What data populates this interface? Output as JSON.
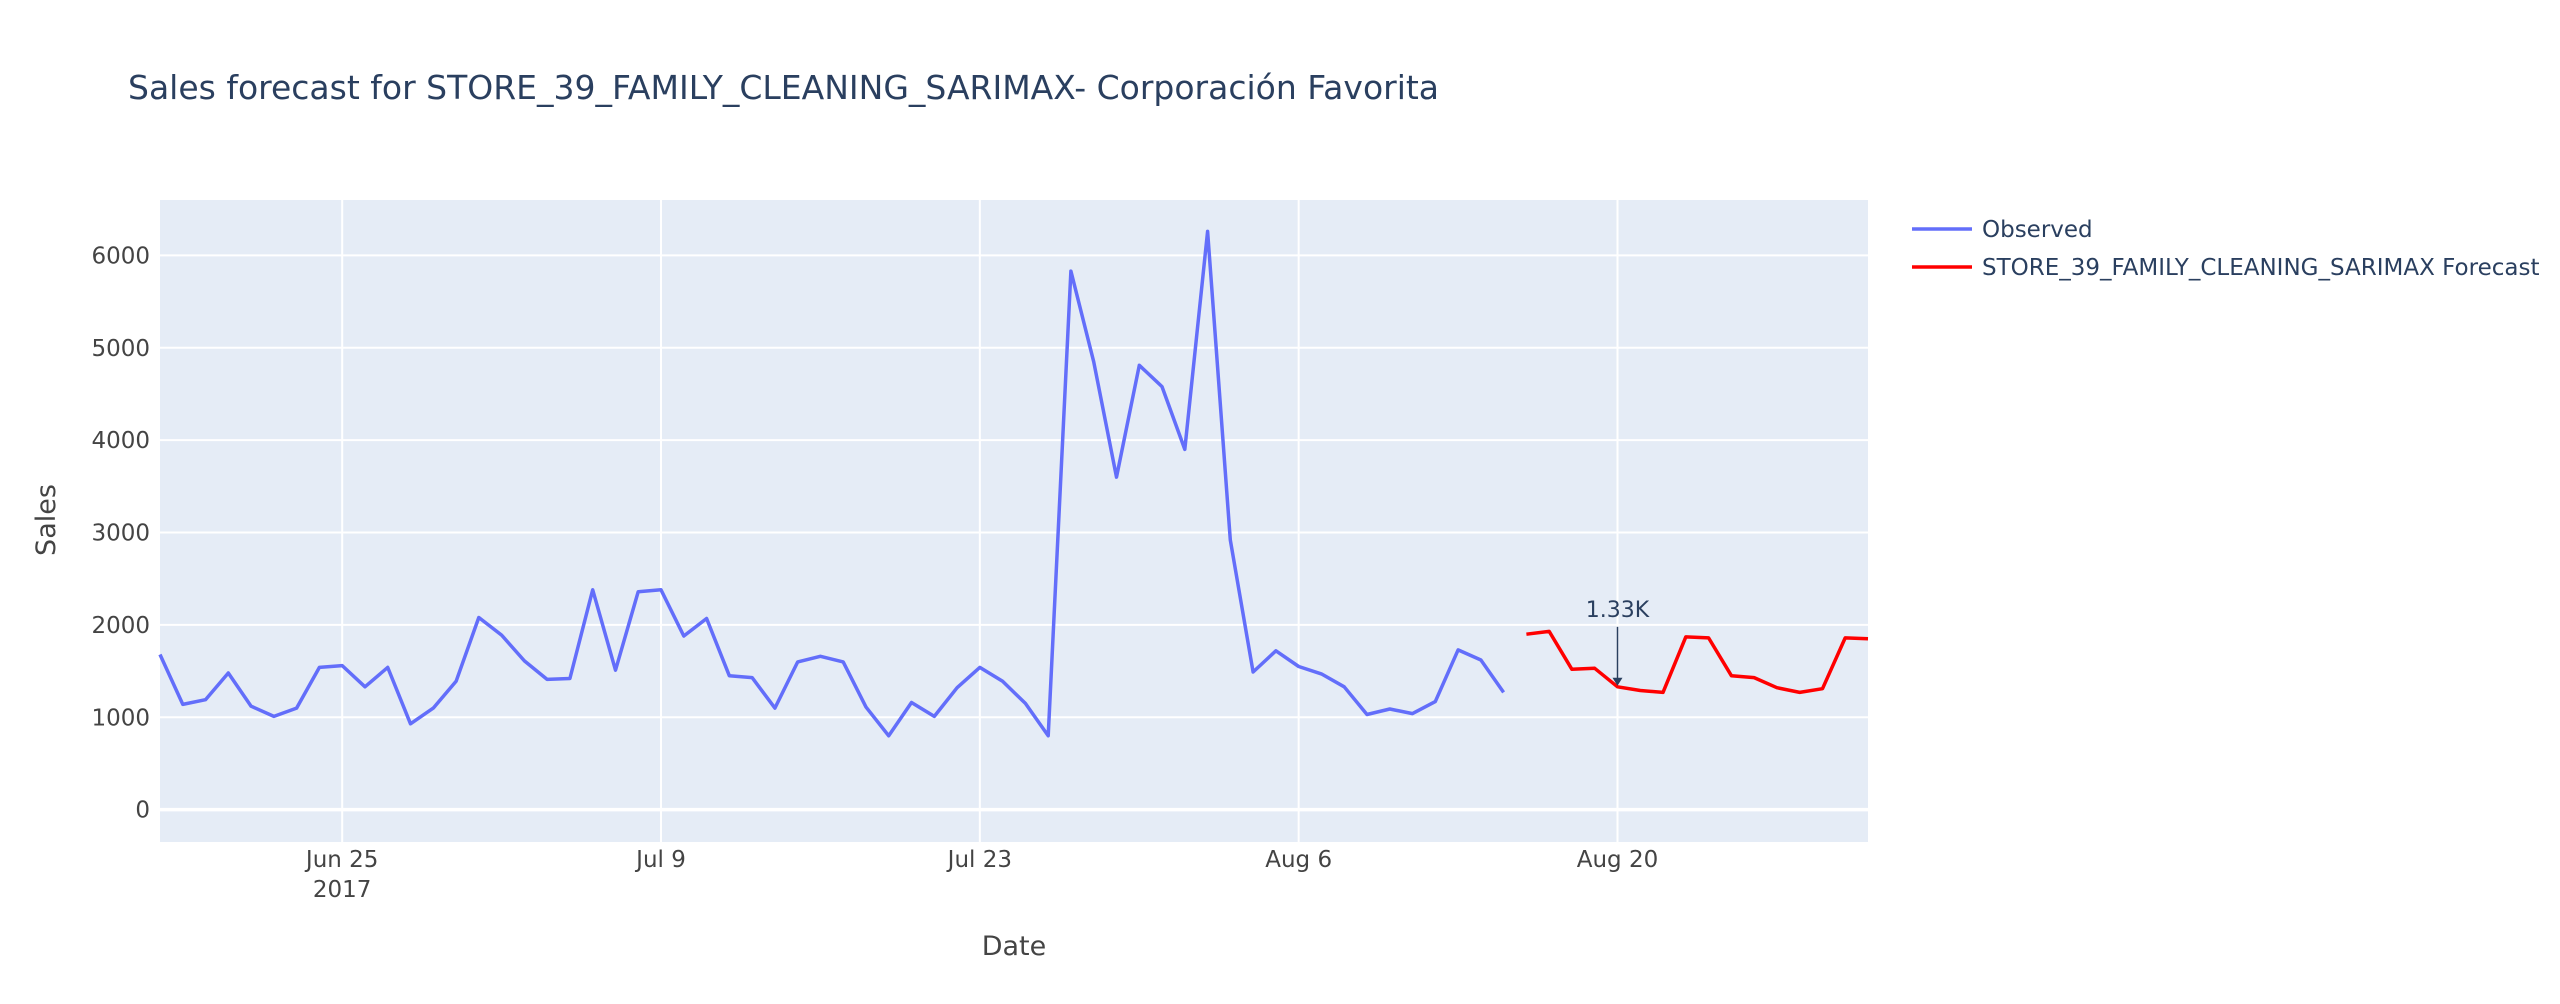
{
  "chart_data": {
    "type": "line",
    "title": "Sales forecast for STORE_39_FAMILY_CLEANING_SARIMAX- Corporación Favorita",
    "xlabel": "Date",
    "ylabel": "Sales",
    "x_ticks": [
      {
        "date": "2017-06-25",
        "label": "Jun 25",
        "sublabel": "2017"
      },
      {
        "date": "2017-07-09",
        "label": "Jul 9",
        "sublabel": ""
      },
      {
        "date": "2017-07-23",
        "label": "Jul 23",
        "sublabel": ""
      },
      {
        "date": "2017-08-06",
        "label": "Aug 6",
        "sublabel": ""
      },
      {
        "date": "2017-08-20",
        "label": "Aug 20",
        "sublabel": ""
      }
    ],
    "y_ticks": [
      0,
      1000,
      2000,
      3000,
      4000,
      5000,
      6000
    ],
    "xlim": [
      "2017-06-17",
      "2017-08-31"
    ],
    "ylim": [
      -350,
      6600
    ],
    "grid": true,
    "legend_position": "top-right",
    "series": [
      {
        "name": "Observed",
        "color": "#636efa",
        "start_date": "2017-06-17",
        "values": [
          1680,
          1140,
          1190,
          1480,
          1120,
          1010,
          1100,
          1540,
          1560,
          1330,
          1540,
          930,
          1100,
          1390,
          2080,
          1890,
          1610,
          1410,
          1420,
          2380,
          1510,
          2360,
          2380,
          1880,
          2070,
          1450,
          1430,
          1100,
          1600,
          1660,
          1600,
          1110,
          800,
          1160,
          1010,
          1320,
          1540,
          1390,
          1150,
          800,
          5830,
          4850,
          3600,
          4810,
          4580,
          3900,
          6260,
          2920,
          1490,
          1720,
          1550,
          1470,
          1330,
          1030,
          1090,
          1040,
          1170,
          1730,
          1620,
          1270
        ]
      },
      {
        "name": "STORE_39_FAMILY_CLEANING_SARIMAX Forecast",
        "color": "#ff0000",
        "start_date": "2017-08-16",
        "values": [
          1900,
          1930,
          1520,
          1530,
          1330,
          1290,
          1270,
          1870,
          1860,
          1450,
          1430,
          1320,
          1270,
          1310,
          1860,
          1850
        ]
      }
    ],
    "annotations": [
      {
        "text": "1.33K",
        "date": "2017-08-20",
        "value": 1330
      }
    ]
  }
}
